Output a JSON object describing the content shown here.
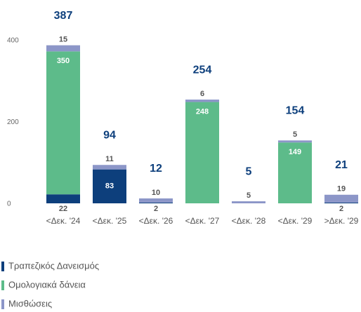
{
  "chart_data": {
    "type": "stacked_bar",
    "categories": [
      "<Δεκ. '24",
      "<Δεκ. '25",
      "<Δεκ. '26",
      "<Δεκ. '27",
      "<Δεκ. '28",
      "<Δεκ. '29",
      ">Δεκ. '29"
    ],
    "series": [
      {
        "name": "Τραπεζικός Δανεισμός",
        "color": "#0d3f7c",
        "values": [
          22,
          83,
          2,
          0,
          0,
          0,
          2
        ]
      },
      {
        "name": "Ομολογιακά δάνεια",
        "color": "#5dbb8a",
        "values": [
          350,
          0,
          0,
          248,
          0,
          149,
          0
        ]
      },
      {
        "name": "Μισθώσεις",
        "color": "#8c96c8",
        "values": [
          15,
          11,
          10,
          6,
          5,
          5,
          19
        ]
      }
    ],
    "totals": [
      387,
      94,
      12,
      254,
      5,
      154,
      21
    ],
    "ylim": [
      0,
      400
    ],
    "yticks": [
      0,
      200,
      400
    ],
    "grid": false
  }
}
